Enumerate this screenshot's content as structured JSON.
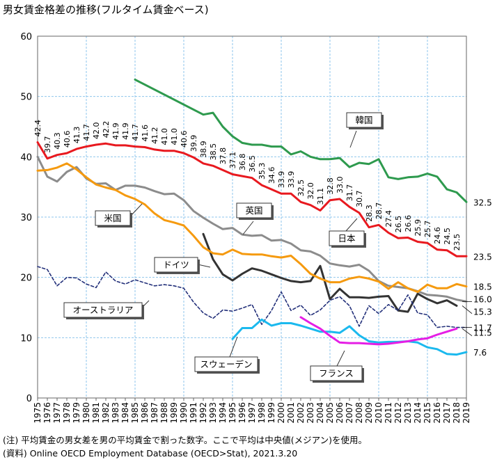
{
  "title": "男女賃金格差の推移(フルタイム賃金ベース)",
  "note": "(注) 平均賃金の男女差を男の平均賃金で割った数字。ここで平均は中央値(メジアン)を使用。",
  "source": "(資料) Online OECD Employment Database (OECD>Stat), 2021.3.20",
  "chart_data": {
    "type": "line",
    "xlim": [
      1975,
      2019
    ],
    "ylim": [
      0,
      60
    ],
    "y_ticks": [
      0,
      10,
      20,
      30,
      40,
      50,
      60
    ],
    "x_ticks": [
      1975,
      1976,
      1977,
      1978,
      1979,
      1980,
      1981,
      1982,
      1983,
      1984,
      1985,
      1986,
      1987,
      1988,
      1989,
      1990,
      1991,
      1992,
      1993,
      1994,
      1995,
      1996,
      1997,
      1998,
      1999,
      2000,
      2001,
      2002,
      2003,
      2004,
      2005,
      2006,
      2007,
      2008,
      2009,
      2010,
      2011,
      2012,
      2013,
      2014,
      2015,
      2016,
      2017,
      2018,
      2019
    ],
    "grid": true,
    "series": [
      {
        "name": "韓国",
        "color": "#2e9a4e",
        "style": "solid",
        "x": [
          1985,
          1992,
          1993,
          1994,
          1995,
          1996,
          1997,
          1998,
          1999,
          2000,
          2001,
          2002,
          2003,
          2004,
          2005,
          2006,
          2007,
          2008,
          2009,
          2010,
          2011,
          2012,
          2013,
          2014,
          2015,
          2016,
          2017,
          2018,
          2019
        ],
        "values": [
          52.8,
          47.0,
          47.3,
          45.0,
          43.4,
          42.3,
          42.0,
          42.0,
          41.7,
          41.7,
          40.4,
          40.9,
          40.0,
          39.6,
          39.6,
          39.8,
          38.3,
          39.0,
          38.8,
          39.6,
          36.6,
          36.3,
          36.6,
          36.7,
          37.2,
          36.7,
          34.6,
          34.1,
          32.5
        ]
      },
      {
        "name": "日本",
        "color": "#e8191f",
        "style": "solid",
        "x": [
          1975,
          1976,
          1977,
          1978,
          1979,
          1980,
          1981,
          1982,
          1983,
          1984,
          1985,
          1986,
          1987,
          1988,
          1989,
          1990,
          1991,
          1992,
          1993,
          1994,
          1995,
          1996,
          1997,
          1998,
          1999,
          2000,
          2001,
          2002,
          2003,
          2004,
          2005,
          2006,
          2007,
          2008,
          2009,
          2010,
          2011,
          2012,
          2013,
          2014,
          2015,
          2016,
          2017,
          2018,
          2019
        ],
        "values": [
          42.4,
          39.7,
          40.3,
          40.6,
          41.3,
          41.7,
          42.0,
          42.2,
          41.9,
          41.9,
          41.7,
          41.6,
          41.2,
          41.0,
          41.0,
          40.6,
          39.9,
          38.9,
          38.5,
          37.8,
          37.1,
          36.8,
          36.5,
          35.3,
          34.6,
          33.9,
          33.9,
          32.5,
          32.0,
          31.1,
          32.8,
          33.0,
          31.7,
          30.7,
          28.3,
          28.7,
          27.4,
          26.5,
          26.6,
          25.9,
          25.7,
          24.6,
          24.5,
          23.5,
          23.5
        ],
        "labels_from": 1975,
        "labels_to": 2018
      },
      {
        "name": "米国",
        "color": "#8c8c8c",
        "style": "solid",
        "x": [
          1975,
          1976,
          1977,
          1978,
          1979,
          1980,
          1981,
          1982,
          1983,
          1984,
          1985,
          1986,
          1987,
          1988,
          1989,
          1990,
          1991,
          1992,
          1993,
          1994,
          1995,
          1996,
          1997,
          1998,
          1999,
          2000,
          2001,
          2002,
          2003,
          2004,
          2005,
          2006,
          2007,
          2008,
          2009,
          2010,
          2011,
          2012,
          2013,
          2014,
          2015,
          2016,
          2017,
          2018,
          2019
        ],
        "values": [
          40.0,
          36.7,
          35.9,
          37.5,
          38.3,
          36.4,
          35.5,
          35.6,
          34.5,
          35.2,
          35.2,
          34.9,
          34.3,
          33.8,
          33.9,
          32.8,
          31.0,
          29.9,
          28.9,
          28.0,
          28.2,
          27.1,
          26.9,
          27.0,
          26.1,
          26.2,
          25.6,
          24.5,
          24.3,
          23.6,
          22.3,
          22.0,
          21.8,
          22.1,
          21.1,
          19.4,
          18.6,
          18.4,
          18.2,
          17.7,
          17.1,
          17.0,
          16.8,
          16.3,
          16.0
        ]
      },
      {
        "name": "ドイツ",
        "color": "#333333",
        "style": "solid",
        "x": [
          1992,
          1993,
          1994,
          1995,
          1996,
          1997,
          1998,
          1999,
          2000,
          2001,
          2002,
          2003,
          2004,
          2005,
          2006,
          2007,
          2008,
          2009,
          2010,
          2011,
          2012,
          2013,
          2014,
          2015,
          2016,
          2017,
          2018
        ],
        "values": [
          27.2,
          23.0,
          20.5,
          19.5,
          20.6,
          21.5,
          21.1,
          20.5,
          19.9,
          19.4,
          19.2,
          19.4,
          21.9,
          16.4,
          18.1,
          16.7,
          16.7,
          16.6,
          16.8,
          16.9,
          14.5,
          14.3,
          17.3,
          16.4,
          15.7,
          16.2,
          15.3
        ]
      },
      {
        "name": "英国",
        "color": "#f59a0f",
        "style": "solid",
        "x": [
          1975,
          1976,
          1977,
          1978,
          1979,
          1980,
          1981,
          1982,
          1983,
          1984,
          1985,
          1986,
          1987,
          1988,
          1989,
          1990,
          1991,
          1992,
          1993,
          1994,
          1995,
          1996,
          1997,
          1998,
          1999,
          2000,
          2001,
          2002,
          2003,
          2004,
          2005,
          2006,
          2007,
          2008,
          2009,
          2010,
          2011,
          2012,
          2013,
          2014,
          2015,
          2016,
          2017,
          2018,
          2019
        ],
        "values": [
          37.7,
          37.8,
          38.2,
          38.9,
          37.9,
          36.6,
          35.4,
          34.9,
          34.5,
          33.6,
          33.0,
          32.1,
          30.6,
          29.5,
          29.1,
          28.6,
          26.9,
          25.0,
          24.0,
          23.8,
          24.6,
          23.9,
          23.8,
          23.8,
          23.5,
          23.3,
          23.6,
          22.2,
          20.6,
          19.8,
          19.2,
          19.2,
          19.8,
          20.1,
          19.8,
          19.3,
          18.1,
          19.2,
          18.2,
          17.6,
          18.8,
          18.2,
          18.2,
          18.9,
          18.5
        ]
      },
      {
        "name": "オーストラリア",
        "color": "#23307a",
        "style": "dashed",
        "x": [
          1975,
          1976,
          1977,
          1978,
          1979,
          1980,
          1981,
          1982,
          1983,
          1984,
          1985,
          1986,
          1987,
          1988,
          1989,
          1990,
          1991,
          1992,
          1993,
          1994,
          1995,
          1996,
          1997,
          1998,
          1999,
          2000,
          2001,
          2002,
          2003,
          2004,
          2005,
          2006,
          2007,
          2008,
          2009,
          2010,
          2011,
          2012,
          2013,
          2014,
          2015,
          2016,
          2017,
          2018,
          2019
        ],
        "values": [
          21.8,
          21.3,
          18.6,
          20.0,
          19.9,
          18.9,
          18.3,
          20.9,
          19.4,
          18.9,
          19.6,
          19.1,
          18.6,
          18.8,
          18.6,
          18.2,
          15.9,
          14.1,
          13.2,
          14.6,
          14.4,
          14.9,
          15.5,
          12.2,
          14.5,
          17.6,
          14.5,
          15.4,
          13.7,
          14.6,
          16.2,
          16.8,
          15.3,
          11.9,
          15.3,
          14.0,
          15.5,
          14.5,
          17.1,
          14.1,
          13.8,
          11.7,
          11.9,
          11.7,
          11.7
        ]
      },
      {
        "name": "スウェーデン",
        "color": "#1bb9ee",
        "style": "solid",
        "x": [
          1995,
          1996,
          1997,
          1998,
          1999,
          2000,
          2001,
          2002,
          2003,
          2004,
          2005,
          2006,
          2007,
          2008,
          2009,
          2010,
          2011,
          2012,
          2013,
          2014,
          2015,
          2016,
          2017,
          2018,
          2019
        ],
        "values": [
          9.8,
          11.6,
          11.6,
          13.0,
          12.0,
          12.4,
          12.4,
          12.0,
          11.5,
          11.0,
          11.0,
          10.8,
          11.9,
          10.4,
          9.4,
          9.2,
          9.3,
          9.3,
          9.4,
          9.2,
          8.4,
          8.1,
          7.3,
          7.2,
          7.6
        ]
      },
      {
        "name": "フランス",
        "color": "#e51ee5",
        "style": "solid",
        "x": [
          2002,
          2003,
          2004,
          2005,
          2006,
          2007,
          2008,
          2009,
          2010,
          2011,
          2012,
          2013,
          2014,
          2015,
          2016,
          2017,
          2018
        ],
        "values": [
          13.4,
          12.4,
          11.5,
          10.3,
          9.2,
          9.1,
          9.1,
          9.0,
          8.9,
          9.0,
          9.2,
          9.4,
          9.7,
          9.9,
          10.5,
          11.0,
          11.5
        ]
      }
    ],
    "end_labels": [
      {
        "text": "32.5",
        "y": 32.5
      },
      {
        "text": "23.5",
        "y": 23.5
      },
      {
        "text": "18.5",
        "y": 18.5
      },
      {
        "text": "16.0",
        "y": 16.0
      },
      {
        "text": "15.3",
        "y": 15.3
      },
      {
        "text": "11.7",
        "y": 11.7
      },
      {
        "text": "11.5",
        "y": 11.5
      },
      {
        "text": "7.6",
        "y": 7.6
      }
    ],
    "callouts": [
      {
        "series": "韓国",
        "text": "韓国"
      },
      {
        "series": "日本",
        "text": "日本"
      },
      {
        "series": "米国",
        "text": "米国"
      },
      {
        "series": "英国",
        "text": "英国"
      },
      {
        "series": "ドイツ",
        "text": "ドイツ"
      },
      {
        "series": "オーストラリア",
        "text": "オーストラリア"
      },
      {
        "series": "スウェーデン",
        "text": "スウェーデン"
      },
      {
        "series": "フランス",
        "text": "フランス"
      }
    ]
  }
}
